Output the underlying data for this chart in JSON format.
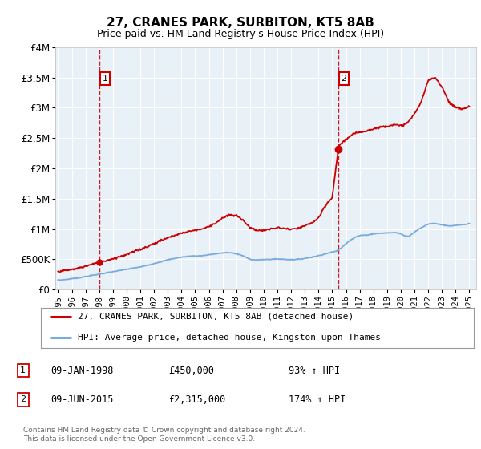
{
  "title": "27, CRANES PARK, SURBITON, KT5 8AB",
  "subtitle": "Price paid vs. HM Land Registry's House Price Index (HPI)",
  "hpi_label": "HPI: Average price, detached house, Kingston upon Thames",
  "property_label": "27, CRANES PARK, SURBITON, KT5 8AB (detached house)",
  "sale1_date": "09-JAN-1998",
  "sale1_price": 450000,
  "sale1_hpi": "93% ↑ HPI",
  "sale2_date": "09-JUN-2015",
  "sale2_price": 2315000,
  "sale2_hpi": "174% ↑ HPI",
  "sale1_year": 1998.03,
  "sale2_year": 2015.44,
  "ylim_max": 4000000,
  "xlim_min": 1994.8,
  "xlim_max": 2025.5,
  "red_color": "#cc0000",
  "blue_color": "#7aabdb",
  "bg_color": "#ffffff",
  "plot_bg": "#e8f0f8",
  "footer_text": "Contains HM Land Registry data © Crown copyright and database right 2024.\nThis data is licensed under the Open Government Licence v3.0.",
  "yticks": [
    0,
    500000,
    1000000,
    1500000,
    2000000,
    2500000,
    3000000,
    3500000,
    4000000
  ],
  "ytick_labels": [
    "£0",
    "£500K",
    "£1M",
    "£1.5M",
    "£2M",
    "£2.5M",
    "£3M",
    "£3.5M",
    "£4M"
  ]
}
